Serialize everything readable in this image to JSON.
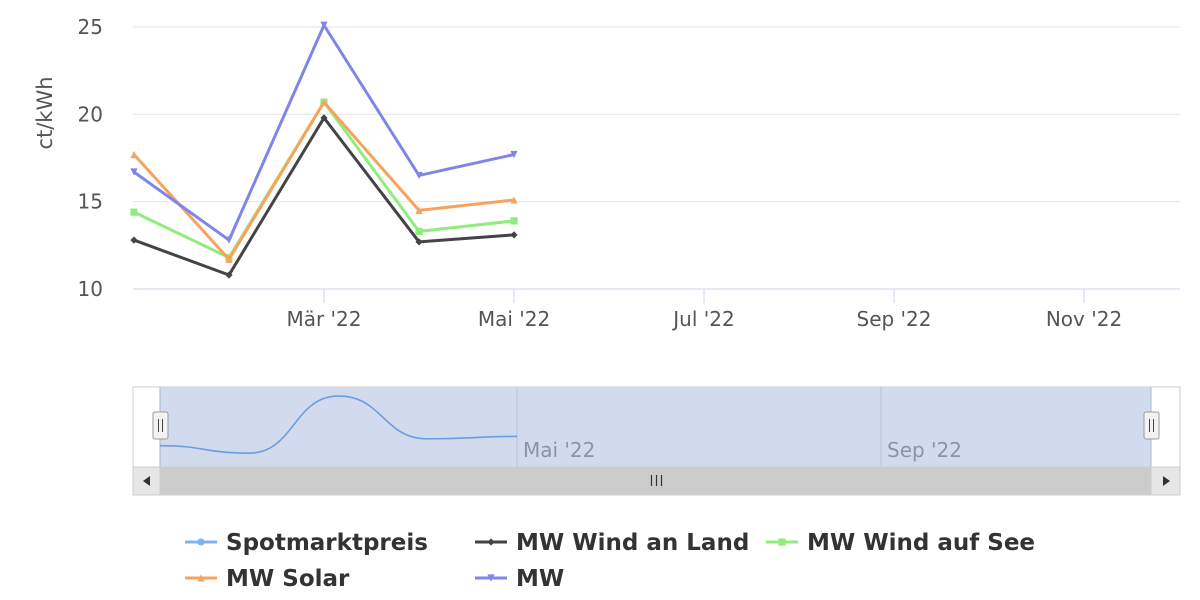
{
  "chart_data": {
    "type": "line",
    "ylabel": "ct/kWh",
    "ylim": [
      10,
      25
    ],
    "yticks": [
      "10",
      "15",
      "20",
      "25"
    ],
    "xticks": [
      "Mär '22",
      "Mai '22",
      "Jul '22",
      "Sep '22",
      "Nov '22"
    ],
    "x": [
      "2022-01",
      "2022-02",
      "2022-03",
      "2022-04",
      "2022-05"
    ],
    "grid": true,
    "legend_position": "bottom",
    "series": [
      {
        "name": "Spotmarktpreis",
        "color": "#7cb5ec",
        "marker": "circle",
        "values": [
          null,
          null,
          null,
          null,
          null
        ]
      },
      {
        "name": "MW Wind an Land",
        "color": "#434348",
        "marker": "diamond",
        "values": [
          12.8,
          10.8,
          19.8,
          12.7,
          13.1
        ]
      },
      {
        "name": "MW Wind auf See",
        "color": "#90ed7d",
        "marker": "square",
        "values": [
          14.4,
          11.8,
          20.7,
          13.3,
          13.9
        ]
      },
      {
        "name": "MW Solar",
        "color": "#f7a35c",
        "marker": "triangle",
        "values": [
          17.7,
          11.7,
          20.7,
          14.5,
          15.1
        ]
      },
      {
        "name": "MW",
        "color": "#8085e9",
        "marker": "triangle-down",
        "values": [
          16.7,
          12.8,
          25.1,
          16.5,
          17.7
        ]
      }
    ],
    "navigator": {
      "labels": [
        "Mai '22",
        "Sep '22"
      ],
      "series_values": [
        11.5,
        10.3,
        19.5,
        12.6,
        13.0
      ]
    }
  }
}
